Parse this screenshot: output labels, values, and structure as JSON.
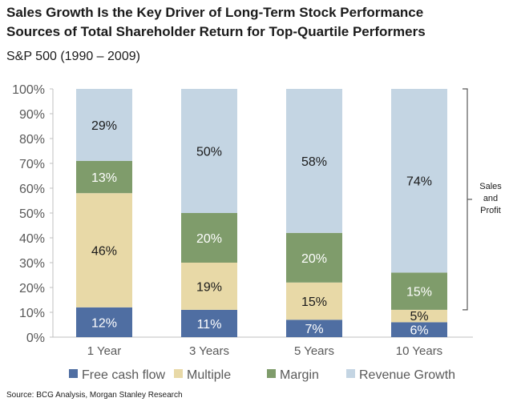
{
  "chart_data": {
    "type": "bar",
    "stacked": true,
    "title": "Sales Growth Is the Key Driver of Long-Term Stock Performance",
    "subtitle": "Sources of Total Shareholder Return for Top-Quartile Performers",
    "index_label": "S&P 500 (1990 – 2009)",
    "categories": [
      "1 Year",
      "3 Years",
      "5 Years",
      "10 Years"
    ],
    "ylim": [
      0,
      100
    ],
    "yticks": [
      "0%",
      "10%",
      "20%",
      "30%",
      "40%",
      "50%",
      "60%",
      "70%",
      "80%",
      "90%",
      "100%"
    ],
    "series": [
      {
        "name": "Free cash flow",
        "color": "#4f6ea2",
        "label_color": "#ffffff",
        "values": [
          12,
          11,
          7,
          6
        ],
        "labels": [
          "12%",
          "11%",
          "7%",
          "6%"
        ]
      },
      {
        "name": "Multiple",
        "color": "#e8d9a7",
        "label_color": "#1a1a1a",
        "values": [
          46,
          19,
          15,
          5
        ],
        "labels": [
          "46%",
          "19%",
          "15%",
          "5%"
        ]
      },
      {
        "name": "Margin",
        "color": "#7f9c6b",
        "label_color": "#ffffff",
        "values": [
          13,
          20,
          20,
          15
        ],
        "labels": [
          "13%",
          "20%",
          "20%",
          "15%"
        ]
      },
      {
        "name": "Revenue Growth",
        "color": "#c4d5e3",
        "label_color": "#1a1a1a",
        "values": [
          29,
          50,
          58,
          74
        ],
        "labels": [
          "29%",
          "50%",
          "58%",
          "74%"
        ]
      }
    ],
    "annotation": {
      "lines": [
        "Sales",
        "and",
        "Profit"
      ],
      "range": [
        11,
        100
      ]
    },
    "source": "Source: BCG Analysis, Morgan Stanley Research",
    "grid": false,
    "legend": "bottom"
  }
}
